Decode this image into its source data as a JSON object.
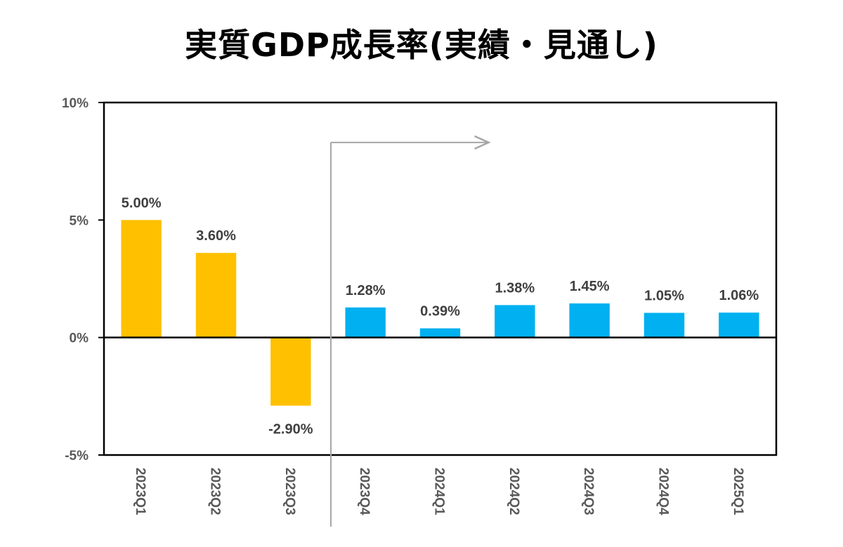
{
  "chart_data": {
    "type": "bar",
    "title": "実質GDP成長率(実績・見通し)",
    "xlabel": "",
    "ylabel": "",
    "categories": [
      "2023Q1",
      "2023Q2",
      "2023Q3",
      "2023Q4",
      "2024Q1",
      "2024Q2",
      "2024Q3",
      "2024Q4",
      "2025Q1"
    ],
    "values": [
      5.0,
      3.6,
      -2.9,
      1.28,
      0.39,
      1.38,
      1.45,
      1.05,
      1.06
    ],
    "data_labels": [
      "5.00%",
      "3.60%",
      "-2.90%",
      "1.28%",
      "0.39%",
      "1.38%",
      "1.45%",
      "1.05%",
      "1.06%"
    ],
    "series": [
      {
        "name": "実績",
        "categories": [
          "2023Q1",
          "2023Q2",
          "2023Q3"
        ],
        "values": [
          5.0,
          3.6,
          -2.9
        ],
        "color": "#FFC000"
      },
      {
        "name": "見通し",
        "categories": [
          "2023Q4",
          "2024Q1",
          "2024Q2",
          "2024Q3",
          "2024Q4",
          "2025Q1"
        ],
        "values": [
          1.28,
          0.39,
          1.38,
          1.45,
          1.05,
          1.06
        ],
        "color": "#00B0F0"
      }
    ],
    "ylim": [
      -5,
      10
    ],
    "yticks": [
      10,
      5,
      0,
      -5
    ],
    "ytick_labels": [
      "10%",
      "5%",
      "0%",
      "-5%"
    ],
    "grid": false,
    "legend": "none",
    "annotations": [
      {
        "type": "divider-arrow",
        "description": "forecast period arrow starting between 2023Q3 and 2023Q4, pointing right",
        "color": "#A6A6A6"
      }
    ],
    "actual_count": 3
  }
}
